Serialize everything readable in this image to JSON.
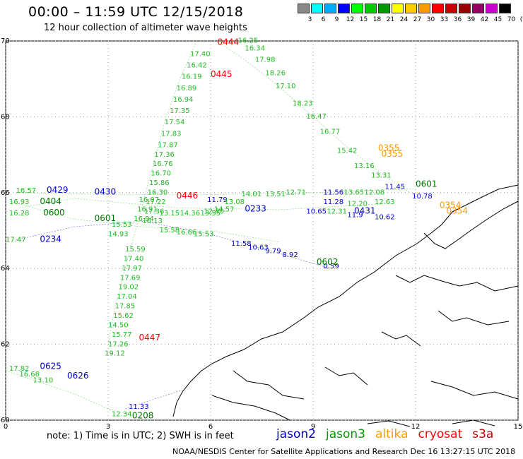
{
  "header": {
    "title": "00:00 – 11:59 UTC 12/15/2018",
    "subtitle": "12 hour collection of altimeter wave heights"
  },
  "color_scale": {
    "labels": [
      "3",
      "6",
      "9",
      "12",
      "15",
      "18",
      "21",
      "24",
      "27",
      "30",
      "33",
      "36",
      "39",
      "42",
      "45",
      "70",
      "(ft)"
    ],
    "colors": [
      "#888888",
      "#00ffff",
      "#00aaff",
      "#0000ff",
      "#00ff00",
      "#00cc00",
      "#009900",
      "#ffff00",
      "#ffcc00",
      "#ff9900",
      "#ff0000",
      "#cc0000",
      "#990000",
      "#990066",
      "#cc00cc",
      "#000000"
    ]
  },
  "footer": {
    "note": "note:  1) Time is in UTC;  2) SWH is in feet",
    "credit": "NOAA/NESDIS Center for Satellite Applications and Research     Dec 16 13:27:15 UTC 2018",
    "legend": [
      {
        "name": "jason2",
        "color": "#0000cc"
      },
      {
        "name": "jason3",
        "color": "#009900"
      },
      {
        "name": "altika",
        "color": "#ff9900"
      },
      {
        "name": "cryosat",
        "color": "#ff0000"
      },
      {
        "name": "s3a",
        "color": "#cc0000"
      }
    ]
  },
  "chart_data": {
    "type": "scatter",
    "title": "12 hour collection of altimeter wave heights",
    "xlim": [
      0,
      15
    ],
    "ylim": [
      60,
      70
    ],
    "x_ticks": [
      "0",
      "3",
      "6",
      "9",
      "12",
      "15"
    ],
    "y_ticks": [
      "60",
      "62",
      "64",
      "66",
      "68",
      "70"
    ],
    "grid": true,
    "pass_labels": [
      {
        "text": "0444",
        "x": 6.2,
        "y": 69.9,
        "sat": "cryosat"
      },
      {
        "text": "0445",
        "x": 6.0,
        "y": 69.05,
        "sat": "cryosat"
      },
      {
        "text": "0446",
        "x": 5.0,
        "y": 65.85,
        "sat": "cryosat"
      },
      {
        "text": "0447",
        "x": 3.9,
        "y": 62.1,
        "sat": "cryosat"
      },
      {
        "text": "0355",
        "x": 10.9,
        "y": 67.1,
        "sat": "altika"
      },
      {
        "text": "0355",
        "x": 11.0,
        "y": 66.95,
        "sat": "altika"
      },
      {
        "text": "0354",
        "x": 12.7,
        "y": 65.6,
        "sat": "altika"
      },
      {
        "text": "0354",
        "x": 12.9,
        "y": 65.45,
        "sat": "altika"
      },
      {
        "text": "0429",
        "x": 1.2,
        "y": 66.0,
        "sat": "jason2"
      },
      {
        "text": "0430",
        "x": 2.6,
        "y": 65.95,
        "sat": "jason2"
      },
      {
        "text": "0233",
        "x": 7.0,
        "y": 65.5,
        "sat": "jason2"
      },
      {
        "text": "0431",
        "x": 10.2,
        "y": 65.45,
        "sat": "jason2"
      },
      {
        "text": "0234",
        "x": 1.0,
        "y": 64.7,
        "sat": "jason2"
      },
      {
        "text": "0625",
        "x": 1.0,
        "y": 61.35,
        "sat": "jason2"
      },
      {
        "text": "0626",
        "x": 1.8,
        "y": 61.1,
        "sat": "jason2"
      },
      {
        "text": "0404",
        "x": 1.0,
        "y": 65.7,
        "sat": "jason3"
      },
      {
        "text": "0600",
        "x": 1.1,
        "y": 65.4,
        "sat": "jason3"
      },
      {
        "text": "0601",
        "x": 2.6,
        "y": 65.25,
        "sat": "jason3"
      },
      {
        "text": "0602",
        "x": 9.1,
        "y": 64.1,
        "sat": "jason3"
      },
      {
        "text": "0208",
        "x": 3.7,
        "y": 60.05,
        "sat": "jason3"
      },
      {
        "text": "0601",
        "x": 12.0,
        "y": 66.15,
        "sat": "jason3"
      }
    ],
    "swh_labels": [
      {
        "text": "16.25",
        "x": 6.8,
        "y": 69.95,
        "sat": "jason3"
      },
      {
        "text": "17.40",
        "x": 5.4,
        "y": 69.6,
        "sat": "jason3"
      },
      {
        "text": "16.42",
        "x": 5.3,
        "y": 69.3,
        "sat": "jason3"
      },
      {
        "text": "16.19",
        "x": 5.15,
        "y": 69.0,
        "sat": "jason3"
      },
      {
        "text": "16.89",
        "x": 5.0,
        "y": 68.7,
        "sat": "jason3"
      },
      {
        "text": "16.94",
        "x": 4.9,
        "y": 68.4,
        "sat": "jason3"
      },
      {
        "text": "17.35",
        "x": 4.8,
        "y": 68.1,
        "sat": "jason3"
      },
      {
        "text": "17.54",
        "x": 4.65,
        "y": 67.8,
        "sat": "jason3"
      },
      {
        "text": "17.83",
        "x": 4.55,
        "y": 67.5,
        "sat": "jason3"
      },
      {
        "text": "17.87",
        "x": 4.45,
        "y": 67.2,
        "sat": "jason3"
      },
      {
        "text": "17.36",
        "x": 4.35,
        "y": 66.95,
        "sat": "jason3"
      },
      {
        "text": "16.76",
        "x": 4.3,
        "y": 66.7,
        "sat": "jason3"
      },
      {
        "text": "16.70",
        "x": 4.25,
        "y": 66.45,
        "sat": "jason3"
      },
      {
        "text": "15.86",
        "x": 4.2,
        "y": 66.2,
        "sat": "jason3"
      },
      {
        "text": "16.30",
        "x": 4.15,
        "y": 65.95,
        "sat": "jason3"
      },
      {
        "text": "17.22",
        "x": 4.1,
        "y": 65.7,
        "sat": "jason3"
      },
      {
        "text": "17.36",
        "x": 4.05,
        "y": 65.45,
        "sat": "jason3"
      },
      {
        "text": "16.13",
        "x": 4.0,
        "y": 65.2,
        "sat": "jason3"
      },
      {
        "text": "16.07",
        "x": 3.9,
        "y": 65.75,
        "sat": "jason3"
      },
      {
        "text": "16.91",
        "x": 3.85,
        "y": 65.5,
        "sat": "jason3"
      },
      {
        "text": "16.94",
        "x": 3.75,
        "y": 65.25,
        "sat": "jason3"
      },
      {
        "text": "15.53",
        "x": 3.1,
        "y": 65.1,
        "sat": "jason3"
      },
      {
        "text": "14.93",
        "x": 3.0,
        "y": 64.85,
        "sat": "jason3"
      },
      {
        "text": "15.59",
        "x": 3.5,
        "y": 64.45,
        "sat": "jason3"
      },
      {
        "text": "17.40",
        "x": 3.45,
        "y": 64.2,
        "sat": "jason3"
      },
      {
        "text": "17.97",
        "x": 3.4,
        "y": 63.95,
        "sat": "jason3"
      },
      {
        "text": "17.69",
        "x": 3.35,
        "y": 63.7,
        "sat": "jason3"
      },
      {
        "text": "19.02",
        "x": 3.3,
        "y": 63.45,
        "sat": "jason3"
      },
      {
        "text": "17.04",
        "x": 3.25,
        "y": 63.2,
        "sat": "jason3"
      },
      {
        "text": "17.85",
        "x": 3.2,
        "y": 62.95,
        "sat": "jason3"
      },
      {
        "text": "15.62",
        "x": 3.15,
        "y": 62.7,
        "sat": "jason3"
      },
      {
        "text": "14.50",
        "x": 3.0,
        "y": 62.45,
        "sat": "jason3"
      },
      {
        "text": "15.77",
        "x": 3.1,
        "y": 62.2,
        "sat": "jason3"
      },
      {
        "text": "17.26",
        "x": 3.0,
        "y": 61.95,
        "sat": "jason3"
      },
      {
        "text": "19.12",
        "x": 2.9,
        "y": 61.7,
        "sat": "jason3"
      },
      {
        "text": "16.34",
        "x": 7.0,
        "y": 69.75,
        "sat": "jason3"
      },
      {
        "text": "17.98",
        "x": 7.3,
        "y": 69.45,
        "sat": "jason3"
      },
      {
        "text": "18.26",
        "x": 7.6,
        "y": 69.1,
        "sat": "jason3"
      },
      {
        "text": "17.10",
        "x": 7.9,
        "y": 68.75,
        "sat": "jason3"
      },
      {
        "text": "18.23",
        "x": 8.4,
        "y": 68.3,
        "sat": "jason3"
      },
      {
        "text": "16.47",
        "x": 8.8,
        "y": 67.95,
        "sat": "jason3"
      },
      {
        "text": "16.77",
        "x": 9.2,
        "y": 67.55,
        "sat": "jason3"
      },
      {
        "text": "15.42",
        "x": 9.7,
        "y": 67.05,
        "sat": "jason3"
      },
      {
        "text": "13.16",
        "x": 10.2,
        "y": 66.65,
        "sat": "jason3"
      },
      {
        "text": "13.31",
        "x": 10.7,
        "y": 66.4,
        "sat": "jason3"
      },
      {
        "text": "11.45",
        "x": 11.1,
        "y": 66.1,
        "sat": "jason2"
      },
      {
        "text": "11.56",
        "x": 9.3,
        "y": 65.95,
        "sat": "jason2"
      },
      {
        "text": "13.65",
        "x": 9.9,
        "y": 65.95,
        "sat": "jason3"
      },
      {
        "text": "12.08",
        "x": 10.5,
        "y": 65.95,
        "sat": "jason3"
      },
      {
        "text": "13.51",
        "x": 7.6,
        "y": 65.9,
        "sat": "jason3"
      },
      {
        "text": "14.01",
        "x": 6.9,
        "y": 65.9,
        "sat": "jason3"
      },
      {
        "text": "12.71",
        "x": 8.2,
        "y": 65.95,
        "sat": "jason3"
      },
      {
        "text": "11.79",
        "x": 5.9,
        "y": 65.75,
        "sat": "jason2"
      },
      {
        "text": "13.08",
        "x": 6.4,
        "y": 65.7,
        "sat": "jason3"
      },
      {
        "text": "14.57",
        "x": 6.1,
        "y": 65.5,
        "sat": "jason3"
      },
      {
        "text": "12.80",
        "x": 5.8,
        "y": 65.45,
        "sat": "jason3"
      },
      {
        "text": "14.36",
        "x": 5.1,
        "y": 65.4,
        "sat": "jason3"
      },
      {
        "text": "13.55",
        "x": 5.7,
        "y": 65.4,
        "sat": "jason3"
      },
      {
        "text": "13.15",
        "x": 4.5,
        "y": 65.4,
        "sat": "jason3"
      },
      {
        "text": "11.28",
        "x": 9.3,
        "y": 65.7,
        "sat": "jason2"
      },
      {
        "text": "12.20",
        "x": 10.0,
        "y": 65.65,
        "sat": "jason3"
      },
      {
        "text": "12.63",
        "x": 10.8,
        "y": 65.7,
        "sat": "jason3"
      },
      {
        "text": "10.65",
        "x": 8.8,
        "y": 65.45,
        "sat": "jason2"
      },
      {
        "text": "12.31",
        "x": 9.4,
        "y": 65.45,
        "sat": "jason3"
      },
      {
        "text": "11.9",
        "x": 10.0,
        "y": 65.35,
        "sat": "jason2"
      },
      {
        "text": "10.62",
        "x": 10.8,
        "y": 65.3,
        "sat": "jason2"
      },
      {
        "text": "10.78",
        "x": 11.9,
        "y": 65.85,
        "sat": "jason2"
      },
      {
        "text": "15.58",
        "x": 4.5,
        "y": 64.95,
        "sat": "jason3"
      },
      {
        "text": "16.66",
        "x": 5.0,
        "y": 64.9,
        "sat": "jason3"
      },
      {
        "text": "15.53",
        "x": 5.5,
        "y": 64.85,
        "sat": "jason3"
      },
      {
        "text": "11.58",
        "x": 6.6,
        "y": 64.6,
        "sat": "jason2"
      },
      {
        "text": "10.63",
        "x": 7.1,
        "y": 64.5,
        "sat": "jason2"
      },
      {
        "text": "9.79",
        "x": 7.6,
        "y": 64.4,
        "sat": "jason2"
      },
      {
        "text": "8.92",
        "x": 8.1,
        "y": 64.3,
        "sat": "jason2"
      },
      {
        "text": "0.59",
        "x": 9.3,
        "y": 64.0,
        "sat": "jason2"
      },
      {
        "text": "16.57",
        "x": 0.3,
        "y": 66.0,
        "sat": "jason3"
      },
      {
        "text": "16.93",
        "x": 0.1,
        "y": 65.7,
        "sat": "jason3"
      },
      {
        "text": "16.28",
        "x": 0.1,
        "y": 65.4,
        "sat": "jason3"
      },
      {
        "text": "17.47",
        "x": 0.0,
        "y": 64.7,
        "sat": "jason3"
      },
      {
        "text": "17.82",
        "x": 0.1,
        "y": 61.3,
        "sat": "jason3"
      },
      {
        "text": "16.68",
        "x": 0.4,
        "y": 61.15,
        "sat": "jason3"
      },
      {
        "text": "13.10",
        "x": 0.8,
        "y": 61.0,
        "sat": "jason3"
      },
      {
        "text": "11.33",
        "x": 3.6,
        "y": 60.3,
        "sat": "jason2"
      },
      {
        "text": "12.34",
        "x": 3.1,
        "y": 60.1,
        "sat": "jason3"
      }
    ],
    "tracks": [
      {
        "sat": "jason3",
        "points": [
          [
            6.2,
            70.0
          ],
          [
            7.0,
            69.5
          ],
          [
            8.0,
            68.8
          ],
          [
            9.0,
            68.0
          ],
          [
            10.0,
            67.2
          ],
          [
            11.0,
            66.5
          ],
          [
            12.0,
            65.9
          ]
        ]
      },
      {
        "sat": "jason3",
        "points": [
          [
            5.6,
            70.0
          ],
          [
            5.1,
            69.0
          ],
          [
            4.7,
            68.0
          ],
          [
            4.4,
            67.0
          ],
          [
            4.1,
            66.0
          ],
          [
            3.8,
            65.0
          ],
          [
            3.5,
            64.0
          ],
          [
            3.2,
            63.0
          ],
          [
            3.0,
            62.0
          ]
        ]
      },
      {
        "sat": "jason3",
        "points": [
          [
            0.4,
            66.0
          ],
          [
            3.0,
            65.95
          ],
          [
            6.0,
            65.95
          ],
          [
            9.0,
            66.0
          ],
          [
            12.0,
            66.1
          ]
        ]
      },
      {
        "sat": "jason3",
        "points": [
          [
            0.2,
            65.75
          ],
          [
            2.0,
            65.3
          ],
          [
            4.0,
            65.1
          ],
          [
            6.0,
            65.0
          ],
          [
            8.0,
            64.7
          ]
        ]
      },
      {
        "sat": "jason3",
        "points": [
          [
            0.4,
            65.6
          ],
          [
            2.0,
            65.85
          ],
          [
            5.0,
            65.6
          ],
          [
            8.0,
            65.55
          ],
          [
            11.0,
            65.7
          ]
        ]
      },
      {
        "sat": "jason2",
        "points": [
          [
            0.3,
            64.75
          ],
          [
            2.0,
            65.1
          ],
          [
            4.0,
            65.25
          ],
          [
            6.0,
            64.9
          ],
          [
            8.0,
            64.4
          ],
          [
            9.5,
            64.0
          ]
        ]
      },
      {
        "sat": "jason3",
        "points": [
          [
            0.0,
            61.3
          ],
          [
            1.0,
            61.0
          ],
          [
            2.0,
            60.7
          ],
          [
            3.0,
            60.3
          ],
          [
            4.0,
            60.05
          ]
        ]
      },
      {
        "sat": "jason2",
        "points": [
          [
            3.5,
            60.3
          ],
          [
            4.5,
            60.6
          ],
          [
            5.2,
            60.8
          ]
        ]
      }
    ]
  }
}
